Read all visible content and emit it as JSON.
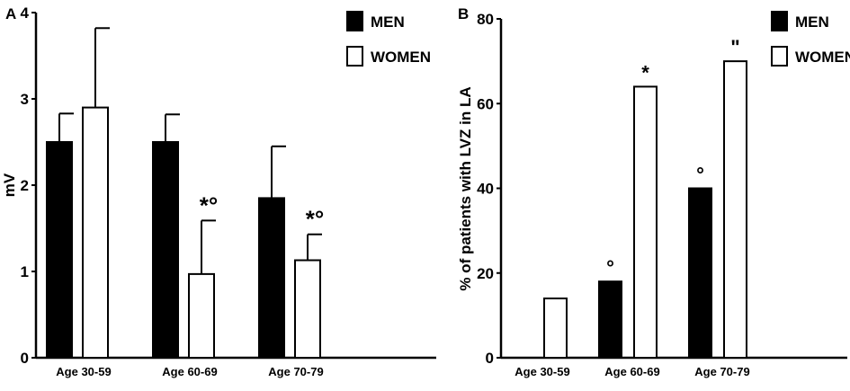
{
  "chart_data": [
    {
      "panel": "A",
      "type": "bar",
      "categories": [
        "Age 30-59",
        "Age 60-69",
        "Age 70-79"
      ],
      "series": [
        {
          "name": "MEN",
          "values": [
            2.5,
            2.5,
            1.85
          ],
          "errors": [
            0.33,
            0.32,
            0.6
          ],
          "color": "#000000"
        },
        {
          "name": "WOMEN",
          "values": [
            2.9,
            0.97,
            1.13
          ],
          "errors": [
            0.92,
            0.62,
            0.3
          ],
          "color": "#ffffff"
        }
      ],
      "ylabel": "mV",
      "ylim": [
        0,
        4
      ],
      "yticks": [
        "0",
        "1",
        "2",
        "3",
        "4"
      ],
      "annotations": [
        {
          "category": 1,
          "series": 1,
          "text": "*°"
        },
        {
          "category": 2,
          "series": 1,
          "text": "*°"
        }
      ],
      "legend_position": "top-right",
      "grid": false
    },
    {
      "panel": "B",
      "type": "bar",
      "categories": [
        "Age 30-59",
        "Age 60-69",
        "Age 70-79"
      ],
      "series": [
        {
          "name": "MEN",
          "values": [
            0,
            18,
            40
          ],
          "color": "#000000"
        },
        {
          "name": "WOMEN",
          "values": [
            14,
            64,
            70
          ],
          "color": "#ffffff"
        }
      ],
      "ylabel": "% of patients with LVZ in LA",
      "ylim": [
        0,
        80
      ],
      "yticks": [
        "0",
        "20",
        "40",
        "60",
        "80"
      ],
      "annotations": [
        {
          "category": 1,
          "series": 0,
          "text": "°"
        },
        {
          "category": 1,
          "series": 1,
          "text": "*"
        },
        {
          "category": 2,
          "series": 0,
          "text": "°"
        },
        {
          "category": 2,
          "series": 1,
          "text": "\""
        }
      ],
      "legend_position": "top-right",
      "grid": false
    }
  ]
}
